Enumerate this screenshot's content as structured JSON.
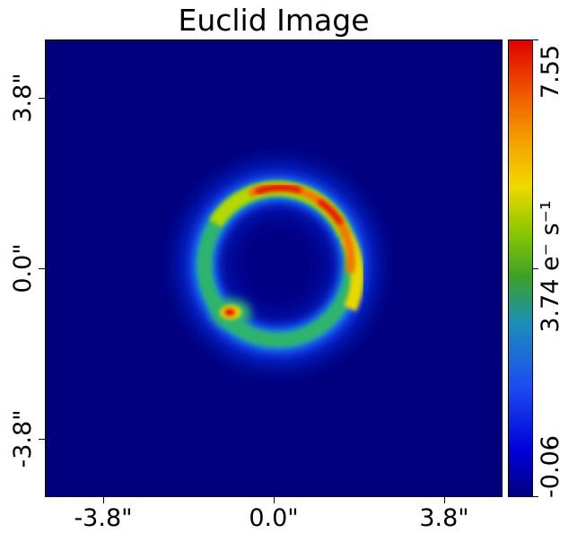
{
  "title": "Euclid Image",
  "x_ticks": [
    "-3.8\"",
    "0.0\"",
    "3.8\""
  ],
  "y_ticks": [
    "3.8\"",
    "0.0\"",
    "-3.8\""
  ],
  "colorbar": {
    "max": "7.55",
    "mid": "3.74",
    "min": "-0.06",
    "unit": "e⁻ s⁻¹",
    "colormap": "jet"
  },
  "colors": {
    "background_min": "#00007f",
    "peak": "#e00000"
  }
}
